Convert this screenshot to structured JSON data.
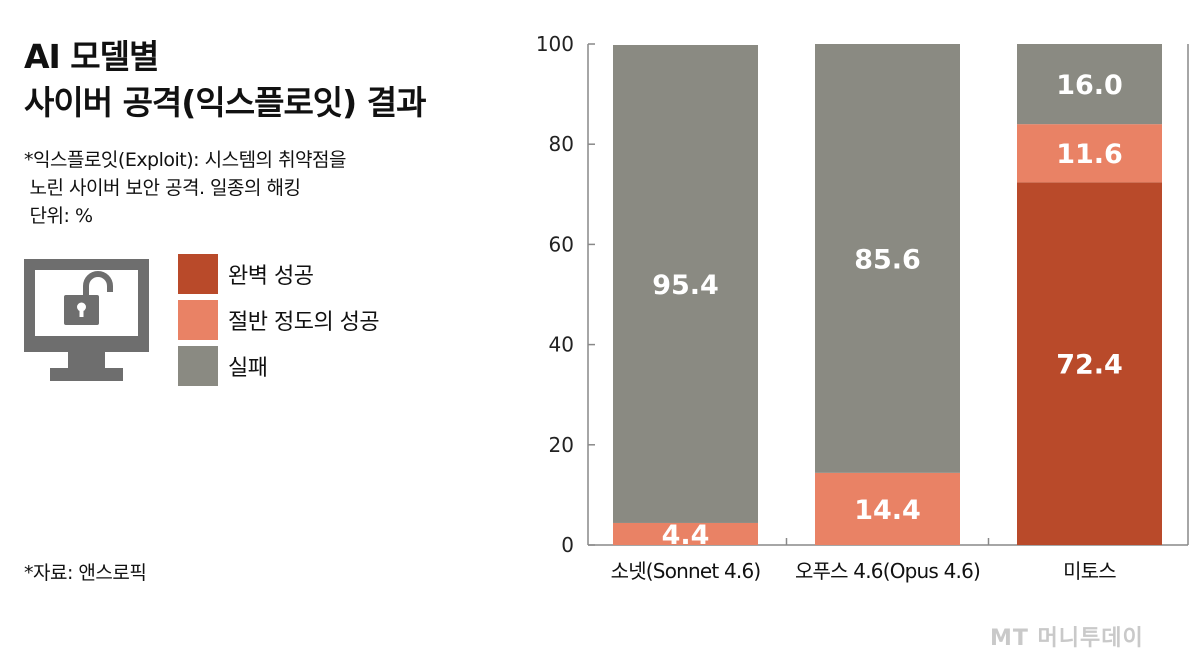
{
  "title": {
    "line1": "AI 모델별",
    "line2": "사이버 공격(익스플로잇) 결과"
  },
  "note": {
    "line1": "*익스플로잇(Exploit): 시스템의 취약점을",
    "line2": " 노린 사이버 보안 공격. 일종의 해킹",
    "line3": " 단위: %"
  },
  "source": "*자료: 앤스로픽",
  "watermark": "MT 머니투데이",
  "icon": "unlocked-monitor-icon",
  "colors": {
    "full": "#b94a2a",
    "half": "#e98265",
    "fail": "#8a8a82",
    "axis": "#888888"
  },
  "legend": [
    {
      "label": "완벽 성공",
      "key": "full"
    },
    {
      "label": "절반 정도의 성공",
      "key": "half"
    },
    {
      "label": "실패",
      "key": "fail"
    }
  ],
  "chart_data": {
    "type": "bar",
    "stacked": true,
    "categories": [
      "소넷(Sonnet 4.6)",
      "오푸스 4.6(Opus 4.6)",
      "미토스"
    ],
    "series": [
      {
        "name": "완벽 성공",
        "values": [
          0,
          0,
          72.4
        ],
        "labels": [
          "",
          "",
          "72.4"
        ]
      },
      {
        "name": "절반 정도의 성공",
        "values": [
          4.4,
          14.4,
          11.6
        ],
        "labels": [
          "4.4",
          "14.4",
          "11.6"
        ]
      },
      {
        "name": "실패",
        "values": [
          95.4,
          85.6,
          16.0
        ],
        "labels": [
          "95.4",
          "85.6",
          "16.0"
        ]
      }
    ],
    "ylim": [
      0,
      100
    ],
    "yticks": [
      "0",
      "20",
      "40",
      "60",
      "80",
      "100"
    ],
    "grid": false
  }
}
